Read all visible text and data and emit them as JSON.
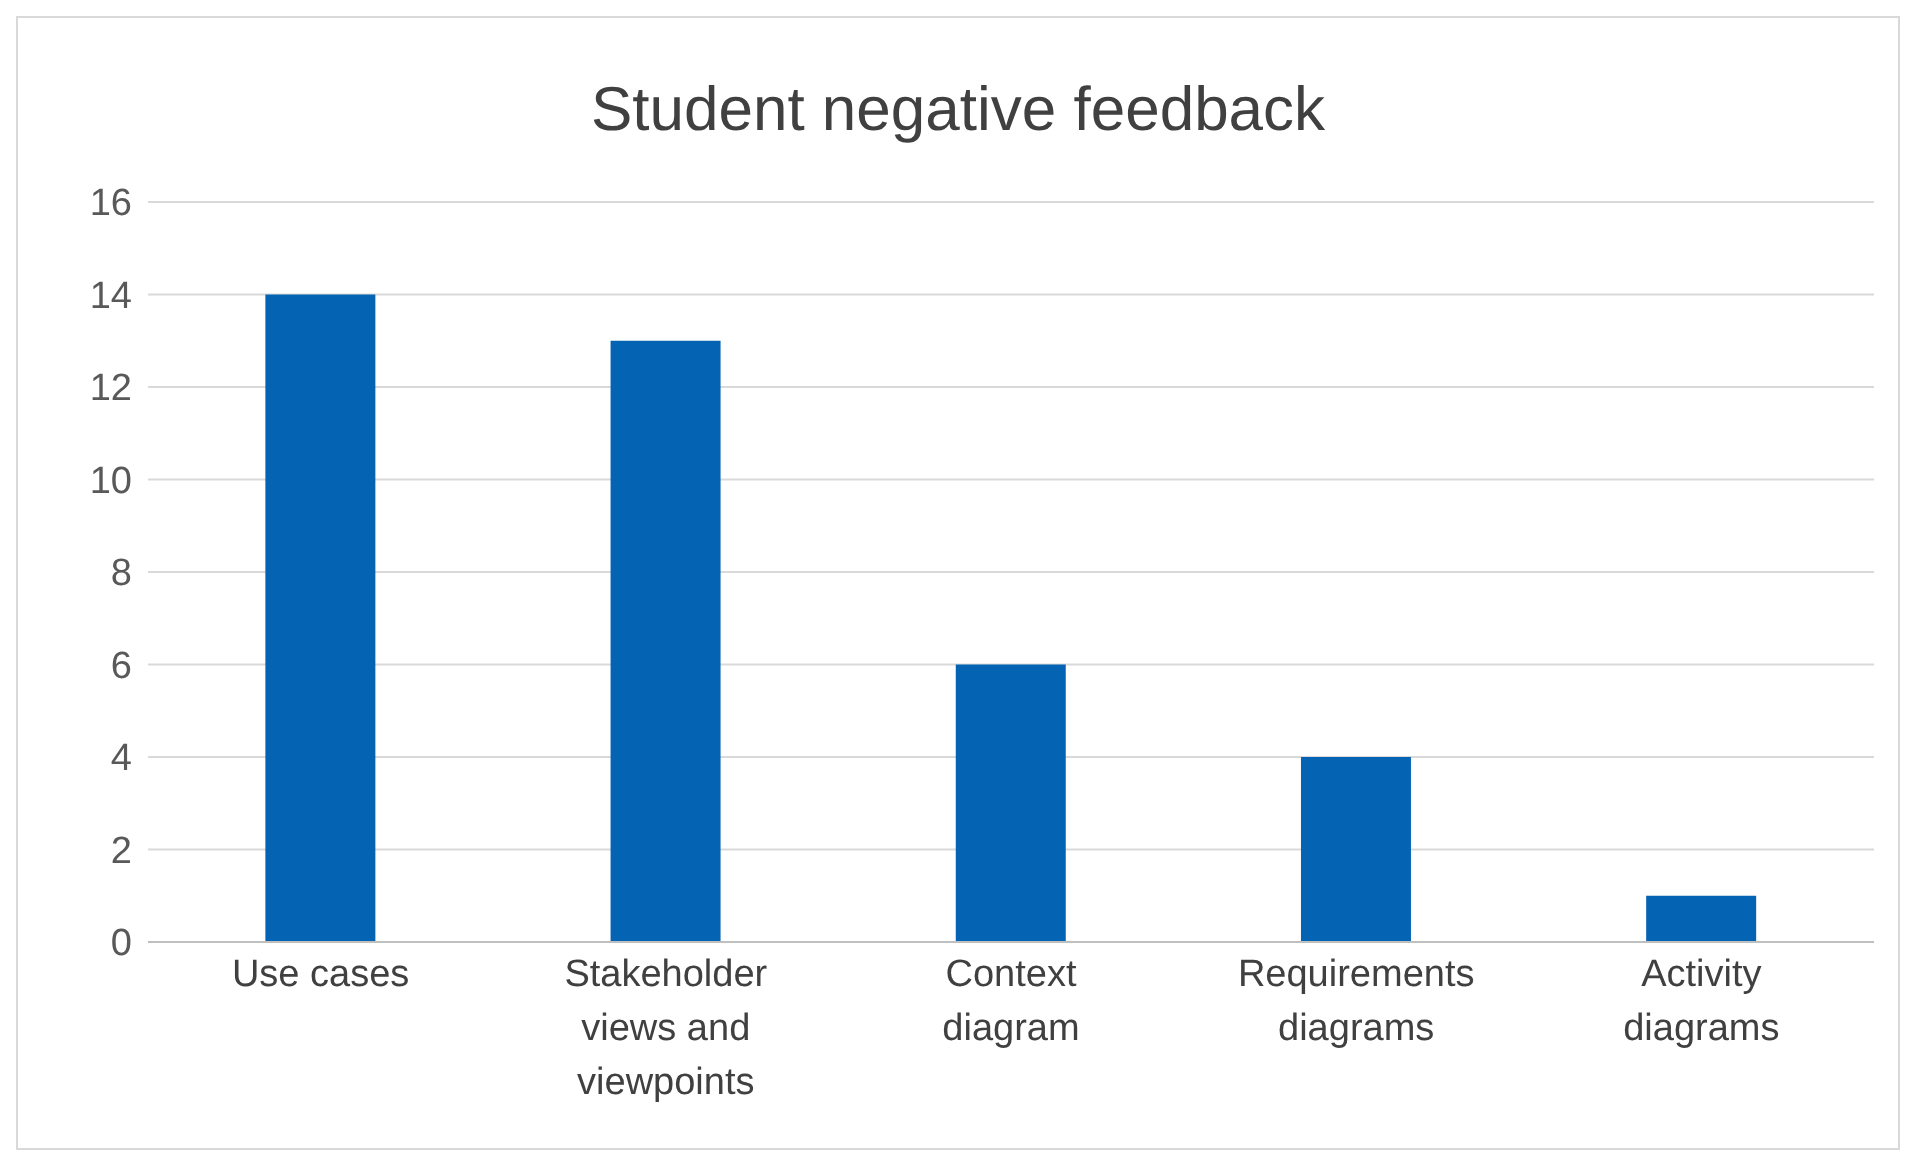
{
  "chart_data": {
    "type": "bar",
    "title": "Student negative feedback",
    "categories": [
      "Use cases",
      "Stakeholder views and viewpoints",
      "Context diagram",
      "Requirements diagrams",
      "Activity diagrams"
    ],
    "values": [
      14,
      13,
      6,
      4,
      1
    ],
    "color": "#0563b4",
    "ylim": [
      0,
      16
    ],
    "yticks": [
      0,
      2,
      4,
      6,
      8,
      10,
      12,
      14,
      16
    ],
    "grid": "y",
    "legend": false
  }
}
